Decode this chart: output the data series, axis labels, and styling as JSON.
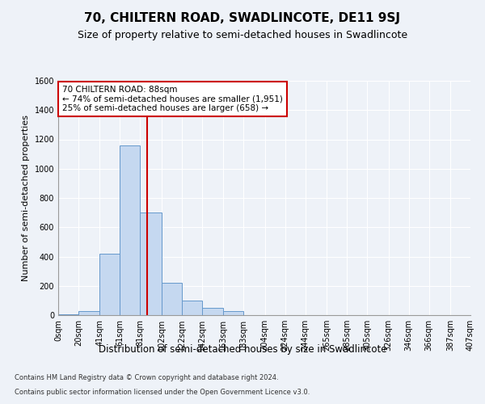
{
  "title": "70, CHILTERN ROAD, SWADLINCOTE, DE11 9SJ",
  "subtitle": "Size of property relative to semi-detached houses in Swadlincote",
  "xlabel": "Distribution of semi-detached houses by size in Swadlincote",
  "ylabel": "Number of semi-detached properties",
  "footer_line1": "Contains HM Land Registry data © Crown copyright and database right 2024.",
  "footer_line2": "Contains public sector information licensed under the Open Government Licence v3.0.",
  "annotation_title": "70 CHILTERN ROAD: 88sqm",
  "annotation_line1": "← 74% of semi-detached houses are smaller (1,951)",
  "annotation_line2": "25% of semi-detached houses are larger (658) →",
  "property_size": 88,
  "bin_edges": [
    0,
    20,
    41,
    61,
    81,
    102,
    122,
    142,
    163,
    183,
    204,
    224,
    244,
    265,
    285,
    305,
    326,
    346,
    366,
    387,
    407
  ],
  "bin_counts": [
    5,
    25,
    420,
    1160,
    700,
    220,
    100,
    50,
    30,
    0,
    0,
    0,
    0,
    0,
    0,
    0,
    0,
    0,
    0,
    0
  ],
  "bar_color": "#c5d8f0",
  "bar_edge_color": "#6699cc",
  "vline_color": "#cc0000",
  "vline_x": 88,
  "ylim": [
    0,
    1600
  ],
  "yticks": [
    0,
    200,
    400,
    600,
    800,
    1000,
    1200,
    1400,
    1600
  ],
  "background_color": "#eef2f8",
  "annotation_box_color": "#ffffff",
  "annotation_box_edge": "#cc0000",
  "title_fontsize": 11,
  "subtitle_fontsize": 9,
  "tick_label_fontsize": 7,
  "ylabel_fontsize": 8,
  "xlabel_fontsize": 8.5,
  "footer_fontsize": 6
}
